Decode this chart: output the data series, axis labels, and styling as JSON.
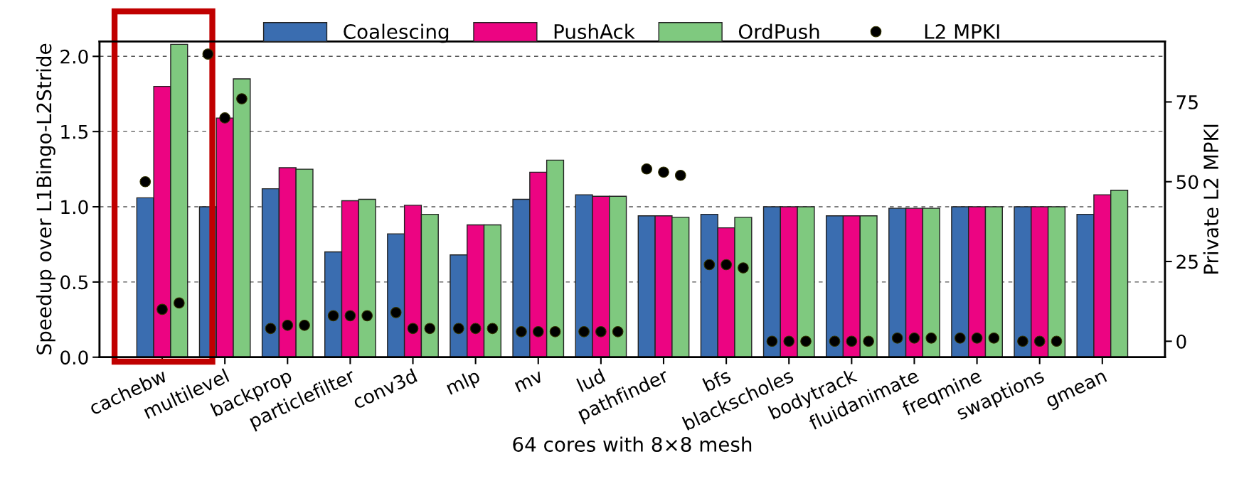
{
  "chart_data": {
    "type": "bar",
    "xlabel": "64 cores with 8×8 mesh",
    "ylabel": "Speedup over L1Bingo-L2Stride",
    "y2label": "Private L2 MPKI",
    "categories": [
      "cachebw",
      "multilevel",
      "backprop",
      "particlefilter",
      "conv3d",
      "mlp",
      "mv",
      "lud",
      "pathfinder",
      "bfs",
      "blackscholes",
      "bodytrack",
      "fluidanimate",
      "freqmine",
      "swaptions",
      "gmean"
    ],
    "series": [
      {
        "name": "Coalescing",
        "color": "#3a6db0",
        "values": [
          1.06,
          1.0,
          1.12,
          0.7,
          0.82,
          0.68,
          1.05,
          1.08,
          0.94,
          0.95,
          1.0,
          0.94,
          0.99,
          1.0,
          1.0,
          0.95
        ]
      },
      {
        "name": "PushAck",
        "color": "#ec0482",
        "values": [
          1.8,
          1.59,
          1.26,
          1.04,
          1.01,
          0.88,
          1.23,
          1.07,
          0.94,
          0.86,
          1.0,
          0.94,
          0.99,
          1.0,
          1.0,
          1.08
        ]
      },
      {
        "name": "OrdPush",
        "color": "#7fc97f",
        "values": [
          2.08,
          1.85,
          1.25,
          1.05,
          0.95,
          0.88,
          1.31,
          1.07,
          0.93,
          0.93,
          1.0,
          0.94,
          0.99,
          1.0,
          1.0,
          1.11
        ]
      },
      {
        "name": "L2 MPKI",
        "type": "scatter",
        "axis": "y2",
        "color": "#000000",
        "values": [
          50,
          90,
          4,
          8,
          9,
          4,
          3,
          3,
          54,
          24,
          0,
          0,
          1,
          1,
          0,
          null
        ]
      },
      {
        "type": "scatter",
        "axis": "y2",
        "color": "#000000",
        "values": [
          10,
          70,
          5,
          8,
          4,
          4,
          3,
          3,
          53,
          24,
          0,
          0,
          1,
          1,
          0,
          null
        ]
      },
      {
        "type": "scatter",
        "axis": "y2",
        "color": "#000000",
        "values": [
          12,
          76,
          5,
          8,
          4,
          4,
          3,
          3,
          52,
          23,
          0,
          0,
          1,
          1,
          0,
          null
        ]
      }
    ],
    "ylim": [
      0,
      2.1
    ],
    "yticks": [
      {
        "value": 0,
        "label": "0.0"
      },
      0.5,
      {
        "value": 1,
        "label": "1.0"
      },
      1.5,
      {
        "value": 2,
        "label": "2.0"
      }
    ],
    "y2lim": [
      -5,
      94
    ],
    "y2ticks": [
      0,
      25,
      50,
      75
    ],
    "grid": "y",
    "legend": "top",
    "marker": "circle"
  }
}
